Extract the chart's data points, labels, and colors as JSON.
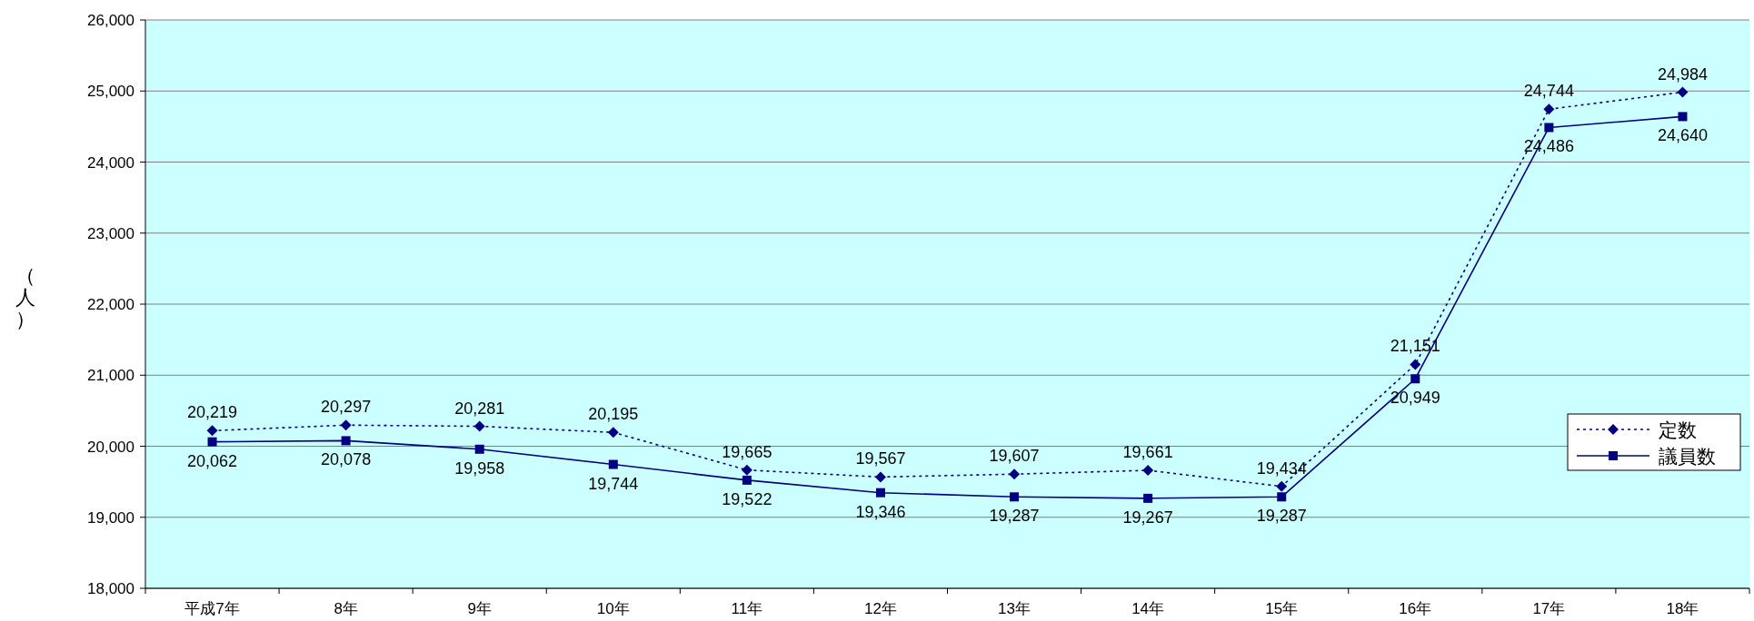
{
  "chart_data": {
    "type": "line",
    "ylabel": "（人）",
    "categories": [
      "平成7年",
      "8年",
      "9年",
      "10年",
      "11年",
      "12年",
      "13年",
      "14年",
      "15年",
      "16年",
      "17年",
      "18年"
    ],
    "series": [
      {
        "name": "定数",
        "color": "#000080",
        "marker": "diamond",
        "line_style": "dotted",
        "values": [
          20219,
          20297,
          20281,
          20195,
          19665,
          19567,
          19607,
          19661,
          19434,
          21151,
          24744,
          24984
        ],
        "value_labels": [
          "20,219",
          "20,297",
          "20,281",
          "20,195",
          "19,665",
          "19,567",
          "19,607",
          "19,661",
          "19,434",
          "21,151",
          "24,744",
          "24,984"
        ]
      },
      {
        "name": "議員数",
        "color": "#000080",
        "marker": "square",
        "line_style": "solid",
        "values": [
          20062,
          20078,
          19958,
          19744,
          19522,
          19346,
          19287,
          19267,
          19287,
          20949,
          24486,
          24640
        ],
        "value_labels": [
          "20,062",
          "20,078",
          "19,958",
          "19,744",
          "19,522",
          "19,346",
          "19,287",
          "19,267",
          "19,287",
          "20,949",
          "24,486",
          "24,640"
        ]
      }
    ],
    "ylim": [
      18000,
      26000
    ],
    "yticks": [
      {
        "value": 18000,
        "label": "18,000"
      },
      {
        "value": 19000,
        "label": "19,000"
      },
      {
        "value": 20000,
        "label": "20,000"
      },
      {
        "value": 21000,
        "label": "21,000"
      },
      {
        "value": 22000,
        "label": "22,000"
      },
      {
        "value": 23000,
        "label": "23,000"
      },
      {
        "value": 24000,
        "label": "24,000"
      },
      {
        "value": 25000,
        "label": "25,000"
      },
      {
        "value": 26000,
        "label": "26,000"
      }
    ],
    "grid": "y",
    "legend": "bottom right"
  }
}
